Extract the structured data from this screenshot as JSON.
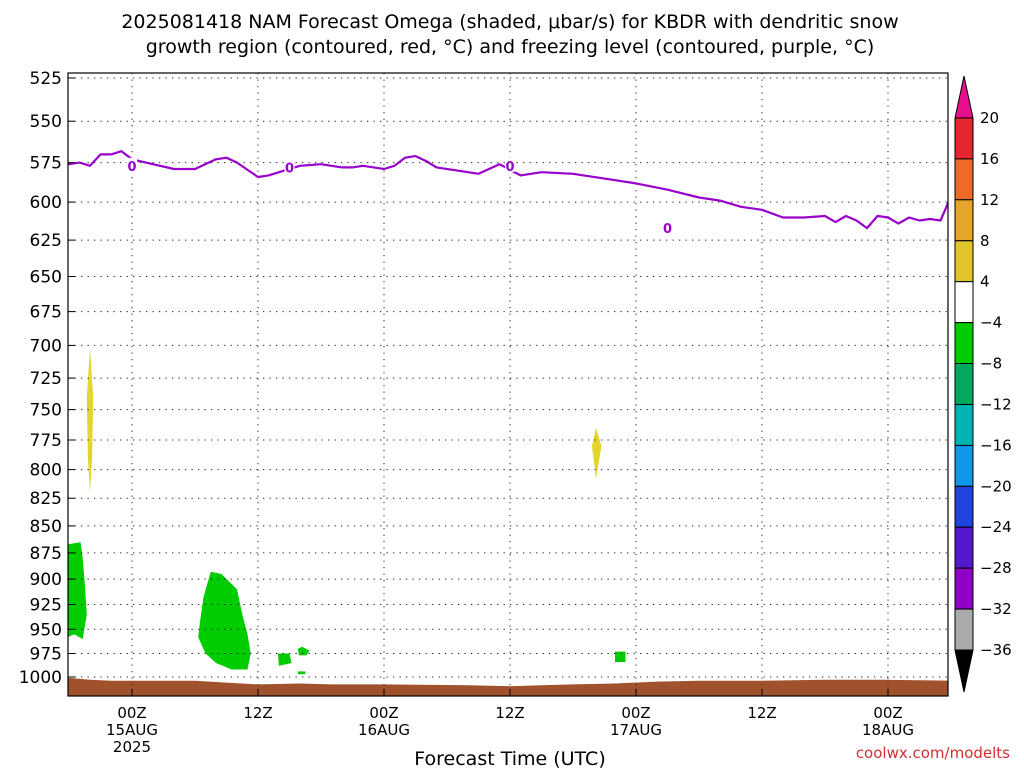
{
  "page": {
    "title_line1": "2025081418 NAM Forecast Omega (shaded, μbar/s) for KBDR with dendritic snow",
    "title_line2": "growth region (contoured, red, °C) and freezing level (contoured, purple, °C)",
    "credit": "coolwx.com/modelts"
  },
  "chart_data": {
    "type": "heatmap",
    "title": "2025081418 NAM Forecast Omega (shaded, μbar/s) for KBDR with dendritic snow growth region (contoured, red, °C) and freezing level (contoured, purple, °C)",
    "xlabel": "Forecast Time (UTC)",
    "ylabel": "",
    "x_unit": "forecast hour (from 2025-08-14 18Z)",
    "xlim": [
      -4,
      84
    ],
    "ylim": [
      1000,
      515
    ],
    "y_scale": "log-pressure (inverted)",
    "grid": true,
    "y_ticks": [
      525,
      550,
      575,
      600,
      625,
      650,
      675,
      700,
      725,
      750,
      775,
      800,
      825,
      850,
      875,
      900,
      925,
      950,
      975,
      1000
    ],
    "x_ticks": [
      {
        "label": "00Z",
        "date": "15AUG",
        "year": "2025"
      },
      {
        "label": "12Z",
        "date": "",
        "year": ""
      },
      {
        "label": "00Z",
        "date": "16AUG",
        "year": ""
      },
      {
        "label": "12Z",
        "date": "",
        "year": ""
      },
      {
        "label": "00Z",
        "date": "17AUG",
        "year": ""
      },
      {
        "label": "12Z",
        "date": "",
        "year": ""
      },
      {
        "label": "00Z",
        "date": "18AUG",
        "year": ""
      }
    ],
    "x_tick_hours": [
      6,
      18,
      30,
      42,
      54,
      66,
      78
    ],
    "freezing_level": {
      "name": "0",
      "contour_label": "0",
      "label_points": [
        [
          6,
          577
        ],
        [
          21,
          578
        ],
        [
          42,
          577
        ],
        [
          57,
          617
        ]
      ],
      "points": [
        [
          -4,
          600
        ],
        [
          -3,
          599
        ],
        [
          -2,
          592
        ],
        [
          -1,
          577
        ],
        [
          0,
          576
        ],
        [
          1,
          575
        ],
        [
          2,
          577
        ],
        [
          3,
          570
        ],
        [
          4,
          570
        ],
        [
          5,
          568
        ],
        [
          6,
          573
        ],
        [
          8,
          576
        ],
        [
          10,
          579
        ],
        [
          12,
          579
        ],
        [
          14,
          573
        ],
        [
          15,
          572
        ],
        [
          16,
          575
        ],
        [
          18,
          584
        ],
        [
          19,
          583
        ],
        [
          20,
          581
        ],
        [
          22,
          577
        ],
        [
          24,
          576
        ],
        [
          26,
          578
        ],
        [
          27,
          578
        ],
        [
          28,
          577
        ],
        [
          30,
          579
        ],
        [
          31,
          577
        ],
        [
          32,
          572
        ],
        [
          33,
          571
        ],
        [
          34,
          574
        ],
        [
          35,
          578
        ],
        [
          37,
          580
        ],
        [
          39,
          582
        ],
        [
          40,
          579
        ],
        [
          41,
          576
        ],
        [
          43,
          583
        ],
        [
          45,
          581
        ],
        [
          48,
          582
        ],
        [
          51,
          585
        ],
        [
          54,
          588
        ],
        [
          57,
          592
        ],
        [
          60,
          597
        ],
        [
          62,
          599
        ],
        [
          64,
          603
        ],
        [
          66,
          605
        ],
        [
          68,
          610
        ],
        [
          70,
          610
        ],
        [
          72,
          609
        ],
        [
          73,
          613
        ],
        [
          74,
          609
        ],
        [
          75,
          612
        ],
        [
          76,
          617
        ],
        [
          77,
          609
        ],
        [
          78,
          610
        ],
        [
          79,
          614
        ],
        [
          80,
          610
        ],
        [
          81,
          612
        ],
        [
          82,
          611
        ],
        [
          83,
          612
        ],
        [
          83.5,
          604
        ],
        [
          84,
          596
        ],
        [
          85,
          588
        ],
        [
          86,
          582
        ],
        [
          87,
          577
        ],
        [
          88,
          570
        ],
        [
          89,
          567
        ]
      ]
    },
    "omega_regions": [
      {
        "value_range": [
          4,
          8
        ],
        "points": [
          [
            -3.8,
            700
          ],
          [
            -3.2,
            700
          ],
          [
            -2.7,
            712
          ],
          [
            -2.6,
            730
          ],
          [
            -3.0,
            750
          ],
          [
            -3.8,
            753
          ]
        ]
      },
      {
        "value_range": [
          4,
          8
        ],
        "points": [
          [
            2.0,
            702
          ],
          [
            2.3,
            740
          ],
          [
            2.2,
            790
          ],
          [
            2.0,
            820
          ],
          [
            1.8,
            790
          ],
          [
            1.7,
            740
          ]
        ]
      },
      {
        "value_range": [
          4,
          8
        ],
        "points": [
          [
            50.2,
            765
          ],
          [
            50.7,
            780
          ],
          [
            50.2,
            808
          ],
          [
            49.8,
            780
          ]
        ]
      },
      {
        "value_range": [
          -8,
          -4
        ],
        "points": [
          [
            -0.8,
            868
          ],
          [
            1.1,
            865
          ],
          [
            1.3,
            880
          ],
          [
            1.5,
            905
          ],
          [
            1.7,
            935
          ],
          [
            1.3,
            960
          ],
          [
            0.5,
            955
          ],
          [
            -0.5,
            960
          ],
          [
            -1.5,
            965
          ],
          [
            -2.3,
            980
          ],
          [
            -3.2,
            970
          ],
          [
            -3.6,
            945
          ],
          [
            -3.3,
            905
          ],
          [
            -2.5,
            885
          ],
          [
            -2.0,
            883
          ],
          [
            -1.4,
            875
          ]
        ]
      },
      {
        "value_range": [
          -8,
          -4
        ],
        "points": [
          [
            13.5,
            893
          ],
          [
            14.5,
            895
          ],
          [
            16.0,
            910
          ],
          [
            16.5,
            935
          ],
          [
            17.0,
            955
          ],
          [
            17.3,
            975
          ],
          [
            17.0,
            992
          ],
          [
            15.5,
            992
          ],
          [
            14.0,
            985
          ],
          [
            13.0,
            975
          ],
          [
            12.3,
            958
          ],
          [
            12.5,
            940
          ],
          [
            12.8,
            918
          ]
        ]
      },
      {
        "value_range": [
          -8,
          -4
        ],
        "points": [
          [
            21.8,
            970
          ],
          [
            22.2,
            968
          ],
          [
            22.9,
            972
          ],
          [
            22.6,
            977
          ],
          [
            21.9,
            977
          ]
        ]
      },
      {
        "value_range": [
          -8,
          -4
        ],
        "points": [
          [
            19.9,
            975
          ],
          [
            21.0,
            975
          ],
          [
            21.2,
            985
          ],
          [
            20.0,
            988
          ]
        ]
      },
      {
        "value_range": [
          -8,
          -4
        ],
        "points": [
          [
            21.8,
            994
          ],
          [
            22.5,
            994
          ],
          [
            22.5,
            997
          ],
          [
            21.8,
            997
          ]
        ]
      },
      {
        "value_range": [
          -8,
          -4
        ],
        "points": [
          [
            52.0,
            973
          ],
          [
            53.0,
            973
          ],
          [
            53.0,
            984
          ],
          [
            52.0,
            984
          ]
        ]
      }
    ],
    "surface": {
      "points": [
        [
          -4,
          1002
        ],
        [
          -2,
          1000
        ],
        [
          0,
          1001
        ],
        [
          2,
          1003
        ],
        [
          4,
          1004
        ],
        [
          7,
          1004
        ],
        [
          12,
          1004
        ],
        [
          15,
          1006
        ],
        [
          18,
          1008
        ],
        [
          22,
          1007
        ],
        [
          25,
          1008
        ],
        [
          30,
          1008
        ],
        [
          38,
          1009
        ],
        [
          42,
          1010
        ],
        [
          45,
          1009
        ],
        [
          48,
          1008
        ],
        [
          52,
          1007
        ],
        [
          56,
          1005
        ],
        [
          60,
          1004
        ],
        [
          66,
          1004
        ],
        [
          72,
          1003
        ],
        [
          78,
          1003
        ],
        [
          84,
          1004
        ],
        [
          89,
          1004
        ]
      ]
    },
    "colorbar": {
      "labels": [
        "20",
        "16",
        "12",
        "8",
        "4",
        "−4",
        "−8",
        "−12",
        "−16",
        "−20",
        "−24",
        "−28",
        "−32",
        "−36"
      ],
      "colors": [
        "#e52530",
        "#ee6a28",
        "#e4a529",
        "#e0c52a",
        "#ffffff",
        "#00cc00",
        "#00a860",
        "#00b4b4",
        "#1096e6",
        "#1f44dd",
        "#5418cc",
        "#9000c6",
        "#aaaaaa"
      ],
      "top_arrow_color": "#e60e8a",
      "bottom_arrow_color": "#000000"
    },
    "colors": {
      "freezing_level": "#9900cc",
      "omega_positive_4_8": "#e0d62e",
      "omega_negative_4_8": "#00cc00",
      "surface": "#a0522d",
      "credit": "#d03030"
    }
  }
}
